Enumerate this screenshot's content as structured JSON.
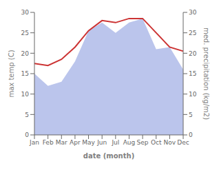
{
  "chart_data": {
    "type": "line",
    "xlabel": "date (month)",
    "ylabel": "max temp (C)",
    "y2label": "med. precipitation (kg/m2)",
    "categories": [
      "Jan",
      "Feb",
      "Mar",
      "Apr",
      "May",
      "Jun",
      "Jul",
      "Aug",
      "Sep",
      "Oct",
      "Nov",
      "Dec"
    ],
    "series": [
      {
        "type": "area",
        "axis": "y2",
        "color": "#bbc5ec",
        "values": [
          15.0,
          12.0,
          13.0,
          18.0,
          25.5,
          27.5,
          25.0,
          27.5,
          28.5,
          21.0,
          21.5,
          16.0
        ]
      },
      {
        "type": "line",
        "color": "#cc3333",
        "values": [
          17.5,
          17.0,
          18.5,
          21.5,
          25.5,
          28.0,
          27.5,
          28.5,
          28.5,
          25.0,
          21.5,
          20.5
        ]
      }
    ],
    "ylim": [
      0,
      30
    ],
    "yticks": [
      0,
      5,
      10,
      15,
      20,
      25,
      30
    ],
    "y2lim": [
      0,
      30
    ],
    "y2ticks": [
      0,
      5,
      10,
      15,
      20,
      25,
      30
    ],
    "grid": false
  }
}
